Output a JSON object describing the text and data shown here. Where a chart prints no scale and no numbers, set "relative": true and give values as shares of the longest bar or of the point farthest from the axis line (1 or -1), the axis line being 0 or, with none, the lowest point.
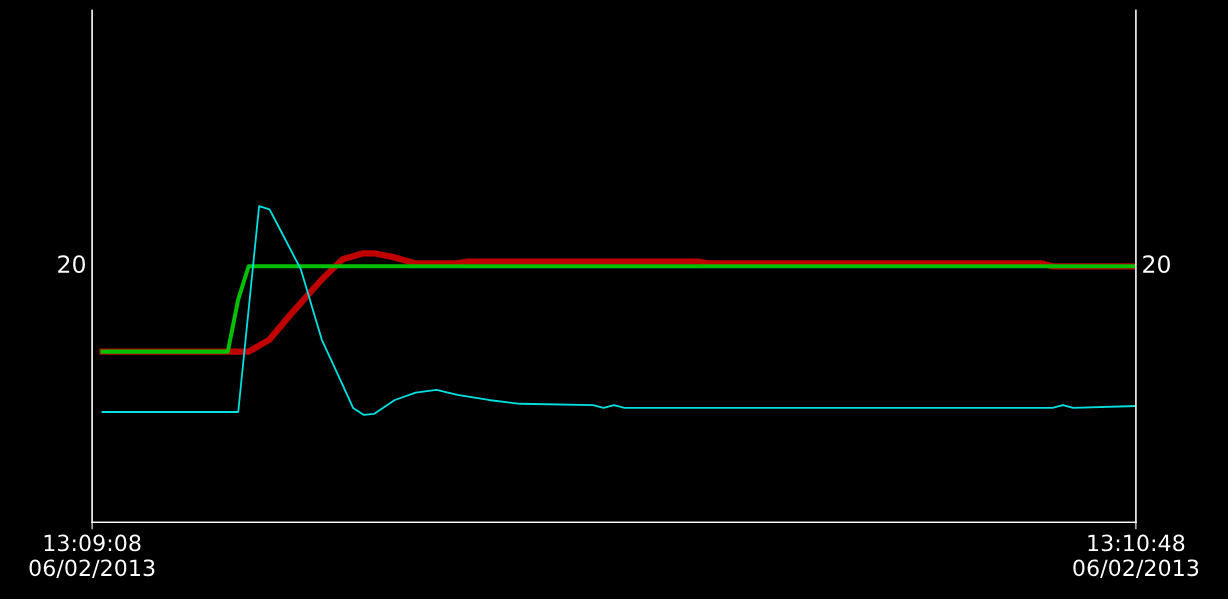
{
  "chart_data": {
    "type": "line",
    "relative": true,
    "grid": false,
    "legend": false,
    "marker": "none",
    "line_style": "solid",
    "xlim": [
      "2013-02-06T13:09:08",
      "2013-02-06T13:10:48"
    ],
    "xticks": [
      {
        "value": "2013-02-06T13:09:08",
        "label": "13:09:08\n06/02/2013"
      },
      {
        "value": "2013-02-06T13:10:48",
        "label": "13:10:48\n06/02/2013"
      }
    ],
    "annotations": [
      "20",
      "20"
    ],
    "series": [
      {
        "color": "#c00000",
        "x": [
          "2013-02-06T13:09:09",
          "2013-02-06T13:09:23",
          "2013-02-06T13:09:25",
          "2013-02-06T13:09:27",
          "2013-02-06T13:09:30",
          "2013-02-06T13:09:32",
          "2013-02-06T13:09:34",
          "2013-02-06T13:09:35",
          "2013-02-06T13:09:37",
          "2013-02-06T13:09:39",
          "2013-02-06T13:09:43",
          "2013-02-06T13:09:44",
          "2013-02-06T13:10:06",
          "2013-02-06T13:10:07",
          "2013-02-06T13:10:39",
          "2013-02-06T13:10:40",
          "2013-02-06T13:10:48"
        ],
        "values": [
          0.54,
          0.54,
          0.578,
          0.657,
          0.768,
          0.832,
          0.851,
          0.851,
          0.838,
          0.819,
          0.819,
          0.825,
          0.825,
          0.819,
          0.819,
          0.81,
          0.81
        ]
      },
      {
        "color": "#00c000",
        "x": [
          "2013-02-06T13:09:09",
          "2013-02-06T13:09:21",
          "2013-02-06T13:09:22",
          "2013-02-06T13:09:23",
          "2013-02-06T13:10:48"
        ],
        "values": [
          0.54,
          0.54,
          0.705,
          0.81,
          0.81
        ]
      },
      {
        "color": "#00e0e0",
        "x": [
          "2013-02-06T13:09:09",
          "2013-02-06T13:09:22",
          "2013-02-06T13:09:24",
          "2013-02-06T13:09:25",
          "2013-02-06T13:09:26",
          "2013-02-06T13:09:28",
          "2013-02-06T13:09:30",
          "2013-02-06T13:09:32",
          "2013-02-06T13:09:33",
          "2013-02-06T13:09:34",
          "2013-02-06T13:09:35",
          "2013-02-06T13:09:37",
          "2013-02-06T13:09:39",
          "2013-02-06T13:09:41",
          "2013-02-06T13:09:43",
          "2013-02-06T13:09:46",
          "2013-02-06T13:09:49",
          "2013-02-06T13:09:56",
          "2013-02-06T13:09:57",
          "2013-02-06T13:09:58",
          "2013-02-06T13:09:59",
          "2013-02-06T13:10:40",
          "2013-02-06T13:10:41",
          "2013-02-06T13:10:42",
          "2013-02-06T13:10:48"
        ],
        "values": [
          0.349,
          0.349,
          1.0,
          0.99,
          0.927,
          0.8,
          0.578,
          0.435,
          0.362,
          0.34,
          0.343,
          0.387,
          0.41,
          0.419,
          0.403,
          0.387,
          0.375,
          0.371,
          0.362,
          0.371,
          0.362,
          0.362,
          0.371,
          0.362,
          0.368
        ]
      }
    ]
  }
}
